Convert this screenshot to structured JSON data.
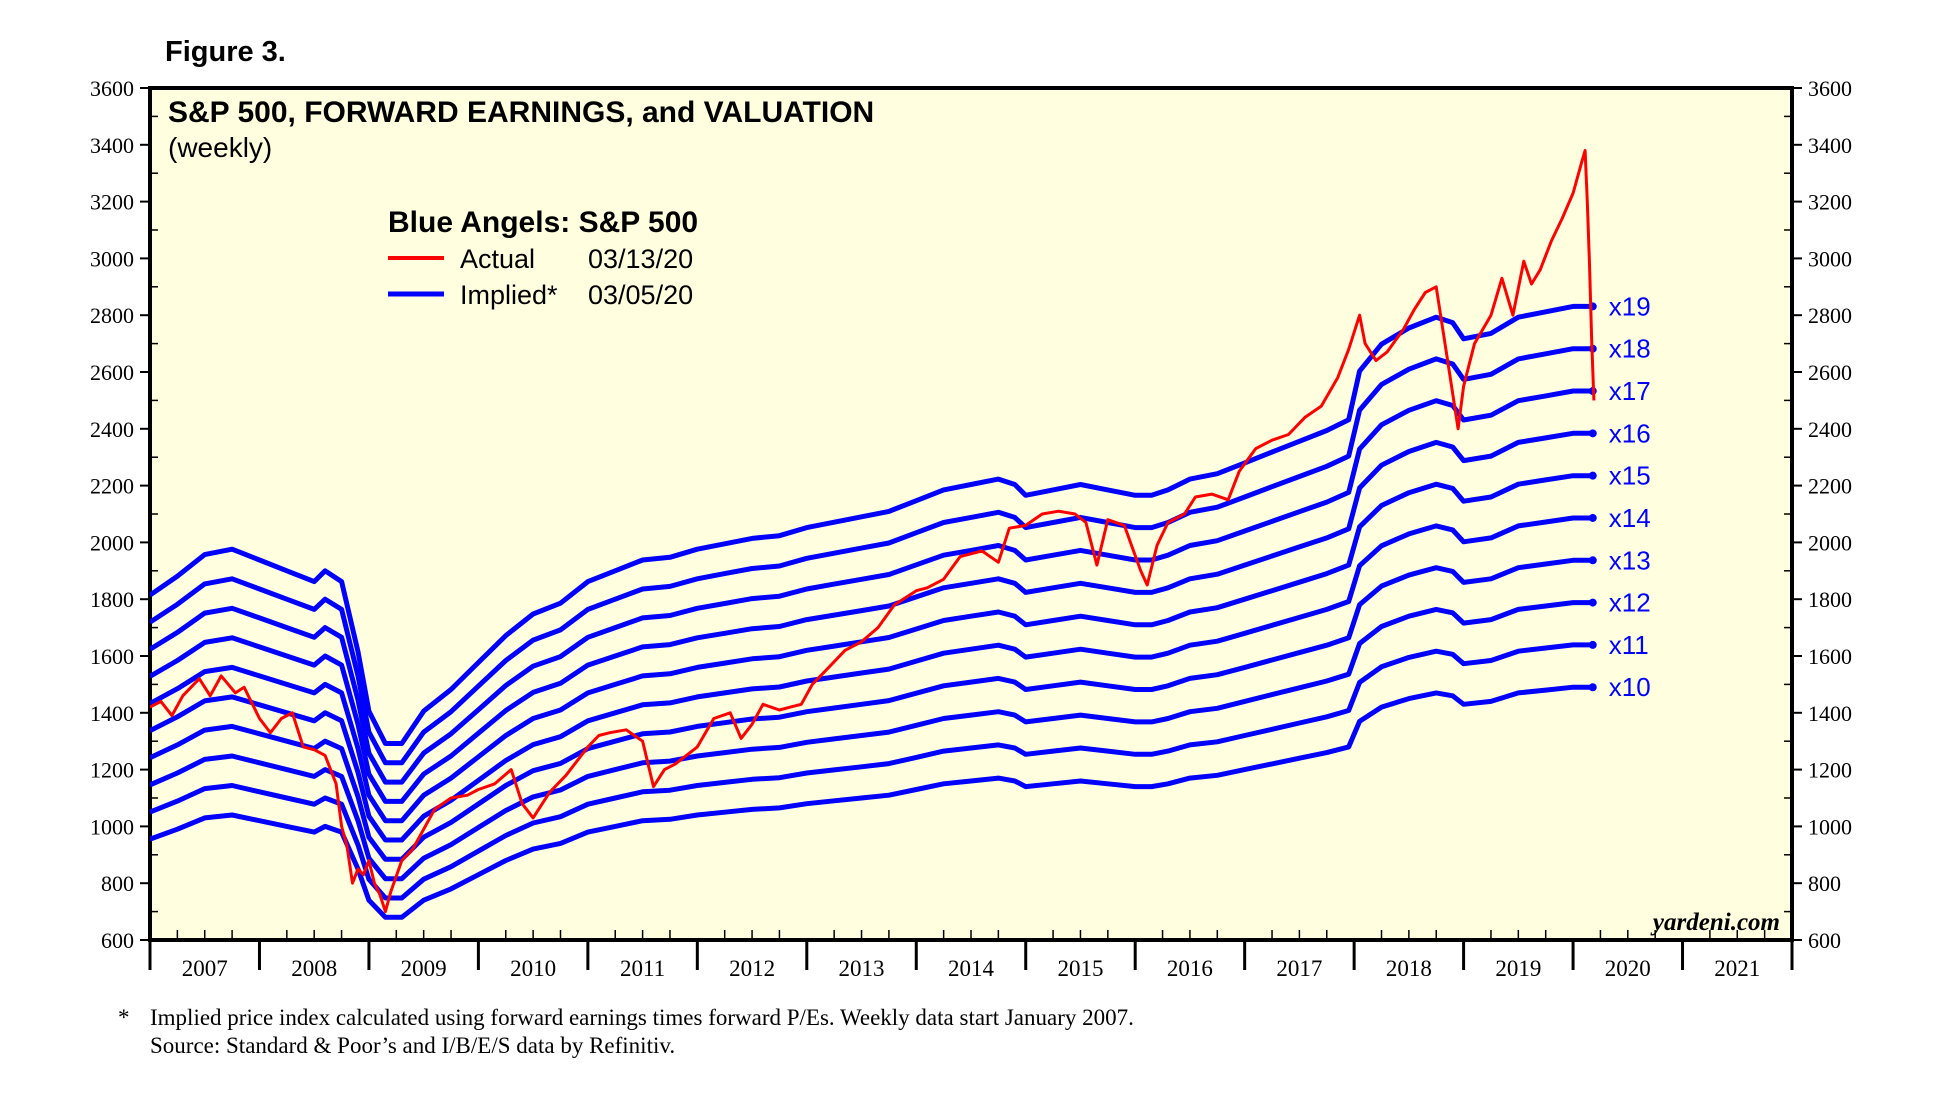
{
  "figure_label": "Figure 3.",
  "footnote": {
    "marker": "*",
    "note": "Implied price index calculated using forward earnings times forward P/Es. Weekly data start January 2007.",
    "source": "Source: Standard & Poor’s and I/B/E/S data by Refinitiv."
  },
  "chart_data": {
    "type": "line",
    "title": "S&P 500, FORWARD EARNINGS, and VALUATION",
    "subtitle": "(weekly)",
    "legend": {
      "title": "Blue Angels: S&P 500",
      "placement": "top-left",
      "entries": [
        {
          "label": "Actual",
          "date": "03/13/20",
          "color": "#ff0000"
        },
        {
          "label": "Implied*",
          "date": "03/05/20",
          "color": "#0000ff"
        }
      ]
    },
    "watermark": "yardeni.com",
    "background_color": "#ffffe0",
    "y_axis": {
      "min": 600,
      "max": 3600,
      "step": 200,
      "minor_step": 100,
      "ticks": [
        600,
        800,
        1000,
        1200,
        1400,
        1600,
        1800,
        2000,
        2200,
        2400,
        2600,
        2800,
        3000,
        3200,
        3400,
        3600
      ],
      "left_and_right": true
    },
    "x_axis": {
      "min": 2007.0,
      "max": 2022.0,
      "year_labels": [
        "2007",
        "2008",
        "2009",
        "2010",
        "2011",
        "2012",
        "2013",
        "2014",
        "2015",
        "2016",
        "2017",
        "2018",
        "2019",
        "2020",
        "2021"
      ]
    },
    "multiple_labels": [
      "x19",
      "x18",
      "x17",
      "x16",
      "x15",
      "x14",
      "x13",
      "x12",
      "x11",
      "x10"
    ],
    "implied_multiples": [
      19,
      18,
      17,
      16,
      15,
      14,
      13,
      12,
      11,
      10
    ],
    "forward_earnings": {
      "description": "forward earnings per share, implied lines = multiple × forward earnings",
      "x": [
        2007.0,
        2007.25,
        2007.5,
        2007.75,
        2008.0,
        2008.25,
        2008.5,
        2008.6,
        2008.75,
        2008.9,
        2009.0,
        2009.15,
        2009.3,
        2009.5,
        2009.75,
        2010.0,
        2010.25,
        2010.5,
        2010.75,
        2011.0,
        2011.25,
        2011.5,
        2011.75,
        2012.0,
        2012.25,
        2012.5,
        2012.75,
        2013.0,
        2013.25,
        2013.5,
        2013.75,
        2014.0,
        2014.25,
        2014.5,
        2014.75,
        2014.9,
        2015.0,
        2015.25,
        2015.5,
        2015.75,
        2016.0,
        2016.15,
        2016.3,
        2016.5,
        2016.75,
        2017.0,
        2017.25,
        2017.5,
        2017.75,
        2017.95,
        2018.05,
        2018.25,
        2018.5,
        2018.75,
        2018.9,
        2019.0,
        2019.25,
        2019.5,
        2019.75,
        2020.0,
        2020.18
      ],
      "values": [
        95.5,
        99,
        103,
        104,
        102,
        100,
        98,
        100,
        98,
        85,
        74,
        68,
        68,
        74,
        78,
        83,
        88,
        92,
        94,
        98,
        100,
        102,
        102.5,
        104,
        105,
        106,
        106.5,
        108,
        109,
        110,
        111,
        113,
        115,
        116,
        117,
        116,
        114,
        115,
        116,
        115,
        114,
        114,
        115,
        117,
        118,
        120,
        122,
        124,
        126,
        128,
        137,
        142,
        145,
        147,
        146,
        143,
        144,
        147,
        148,
        149,
        149
      ]
    },
    "actual": {
      "name": "Actual",
      "x": [
        2007.0,
        2007.1,
        2007.2,
        2007.3,
        2007.45,
        2007.55,
        2007.65,
        2007.78,
        2007.86,
        2008.0,
        2008.1,
        2008.2,
        2008.3,
        2008.4,
        2008.5,
        2008.6,
        2008.7,
        2008.75,
        2008.8,
        2008.85,
        2008.9,
        2008.95,
        2009.0,
        2009.05,
        2009.1,
        2009.15,
        2009.2,
        2009.3,
        2009.4,
        2009.5,
        2009.6,
        2009.75,
        2009.9,
        2010.0,
        2010.15,
        2010.3,
        2010.4,
        2010.5,
        2010.65,
        2010.8,
        2011.0,
        2011.1,
        2011.2,
        2011.35,
        2011.5,
        2011.6,
        2011.7,
        2011.8,
        2011.9,
        2012.0,
        2012.15,
        2012.3,
        2012.4,
        2012.5,
        2012.6,
        2012.75,
        2012.85,
        2012.95,
        2013.05,
        2013.2,
        2013.35,
        2013.5,
        2013.65,
        2013.8,
        2014.0,
        2014.1,
        2014.25,
        2014.4,
        2014.5,
        2014.6,
        2014.75,
        2014.85,
        2015.0,
        2015.15,
        2015.3,
        2015.45,
        2015.55,
        2015.65,
        2015.75,
        2015.9,
        2016.05,
        2016.11,
        2016.2,
        2016.3,
        2016.45,
        2016.55,
        2016.7,
        2016.85,
        2016.95,
        2017.1,
        2017.25,
        2017.4,
        2017.55,
        2017.7,
        2017.85,
        2017.95,
        2018.05,
        2018.1,
        2018.2,
        2018.3,
        2018.45,
        2018.55,
        2018.65,
        2018.75,
        2018.85,
        2018.95,
        2019.0,
        2019.1,
        2019.25,
        2019.35,
        2019.45,
        2019.55,
        2019.62,
        2019.7,
        2019.8,
        2019.9,
        2020.0,
        2020.08,
        2020.11,
        2020.13,
        2020.15,
        2020.17,
        2020.19
      ],
      "values": [
        1420,
        1440,
        1390,
        1460,
        1520,
        1460,
        1530,
        1470,
        1490,
        1380,
        1330,
        1380,
        1400,
        1280,
        1270,
        1250,
        1150,
        1000,
        930,
        800,
        850,
        830,
        880,
        800,
        760,
        700,
        770,
        880,
        920,
        990,
        1060,
        1100,
        1110,
        1130,
        1150,
        1200,
        1080,
        1030,
        1120,
        1180,
        1280,
        1320,
        1330,
        1340,
        1300,
        1140,
        1200,
        1220,
        1250,
        1280,
        1380,
        1400,
        1310,
        1360,
        1430,
        1410,
        1420,
        1430,
        1500,
        1560,
        1620,
        1650,
        1700,
        1780,
        1830,
        1840,
        1870,
        1950,
        1960,
        1970,
        1930,
        2050,
        2060,
        2100,
        2110,
        2100,
        2070,
        1920,
        2080,
        2060,
        1900,
        1850,
        1990,
        2070,
        2100,
        2160,
        2170,
        2150,
        2250,
        2330,
        2360,
        2380,
        2440,
        2480,
        2580,
        2680,
        2800,
        2700,
        2640,
        2670,
        2750,
        2820,
        2880,
        2900,
        2650,
        2400,
        2550,
        2700,
        2800,
        2930,
        2800,
        2990,
        2910,
        2960,
        3060,
        3140,
        3230,
        3340,
        3380,
        3200,
        2980,
        2710,
        2500
      ]
    }
  }
}
